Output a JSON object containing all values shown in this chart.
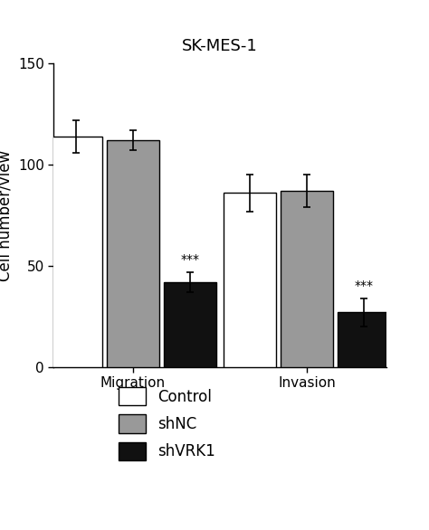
{
  "title": "SK-MES-1",
  "ylabel": "Cell number/view",
  "ylim": [
    0,
    150
  ],
  "yticks": [
    0,
    50,
    100,
    150
  ],
  "groups": [
    "Migration",
    "Invasion"
  ],
  "conditions": [
    "Control",
    "shNC",
    "shVRK1"
  ],
  "values": {
    "Migration": [
      114,
      112,
      42
    ],
    "Invasion": [
      86,
      87,
      27
    ]
  },
  "errors": {
    "Migration": [
      8,
      5,
      5
    ],
    "Invasion": [
      9,
      8,
      7
    ]
  },
  "bar_colors": [
    "#ffffff",
    "#999999",
    "#111111"
  ],
  "bar_edgecolor": "#000000",
  "bar_width": 0.18,
  "group_centers": [
    0.3,
    0.85
  ],
  "significance": {
    "Migration": "***",
    "Invasion": "***"
  },
  "legend_labels": [
    "Control",
    "shNC",
    "shVRK1"
  ],
  "legend_colors": [
    "#ffffff",
    "#999999",
    "#111111"
  ],
  "background_color": "#ffffff",
  "title_fontsize": 13,
  "axis_fontsize": 12,
  "tick_fontsize": 11,
  "legend_fontsize": 12
}
